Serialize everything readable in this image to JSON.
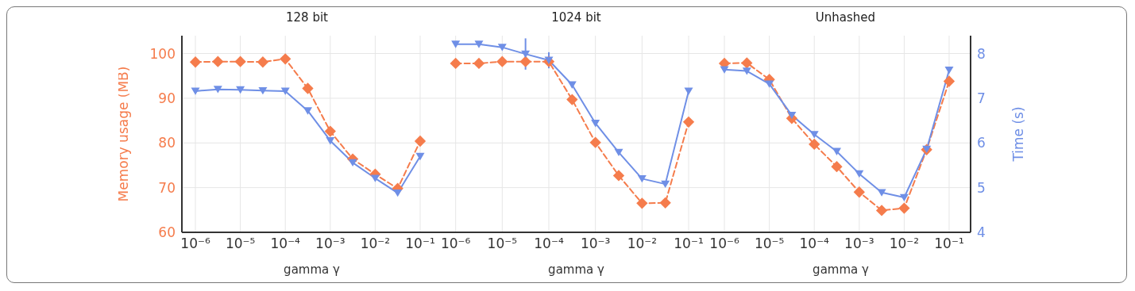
{
  "chart_data": [
    {
      "type": "line",
      "title": "128 bit",
      "xlabel": "gamma γ",
      "ylabel": "Memory usage (MB)",
      "log": "x",
      "grid": true,
      "x": [
        1e-06,
        3.16e-06,
        1e-05,
        3.16e-05,
        0.0001,
        0.000316,
        0.001,
        0.00316,
        0.01,
        0.0316,
        0.1
      ],
      "xlim": [
        5e-07,
        0.3
      ],
      "xticks": [
        {
          "value": 1e-06,
          "label": "10⁻⁶"
        },
        {
          "value": 1e-05,
          "label": "10⁻⁵"
        },
        {
          "value": 0.0001,
          "label": "10⁻⁴"
        },
        {
          "value": 0.001,
          "label": "10⁻³"
        },
        {
          "value": 0.01,
          "label": "10⁻²"
        },
        {
          "value": 0.1,
          "label": "10⁻¹"
        }
      ],
      "ylim": [
        60,
        104
      ],
      "yticks": [
        60,
        70,
        80,
        90,
        100
      ],
      "y2lim": [
        4,
        8.4
      ],
      "series": [
        {
          "color": "#f57c4c",
          "marker": "diamond",
          "line_style": "dashed",
          "values": [
            98.1,
            98.2,
            98.2,
            98.1,
            98.8,
            92.2,
            82.6,
            76.4,
            73.0,
            69.8,
            80.4
          ]
        },
        {
          "color": "#6f8fe6",
          "marker": "triangle",
          "line_style": "solid",
          "axis": "y2",
          "values": [
            7.16,
            7.2,
            7.19,
            7.17,
            7.16,
            6.72,
            6.05,
            5.56,
            5.21,
            4.88,
            5.7
          ]
        }
      ]
    },
    {
      "type": "line",
      "title": "1024 bit",
      "xlabel": "gamma γ",
      "log": "x",
      "grid": true,
      "tick_labels": "x",
      "x": [
        1e-06,
        3.16e-06,
        1e-05,
        3.16e-05,
        0.0001,
        0.000316,
        0.001,
        0.00316,
        0.01,
        0.0316,
        0.1
      ],
      "xlim": [
        5e-07,
        0.3
      ],
      "xticks": [
        {
          "value": 1e-06,
          "label": "10⁻⁶"
        },
        {
          "value": 1e-05,
          "label": "10⁻⁵"
        },
        {
          "value": 0.0001,
          "label": "10⁻⁴"
        },
        {
          "value": 0.001,
          "label": "10⁻³"
        },
        {
          "value": 0.01,
          "label": "10⁻²"
        },
        {
          "value": 0.1,
          "label": "10⁻¹"
        }
      ],
      "ylim": [
        60,
        104
      ],
      "yticks": [
        60,
        70,
        80,
        90,
        100
      ],
      "y2lim": [
        4,
        8.4
      ],
      "series": [
        {
          "color": "#f57c4c",
          "marker": "diamond",
          "line_style": "dashed",
          "values": [
            97.8,
            97.8,
            98.2,
            98.2,
            98.2,
            89.7,
            80.1,
            72.7,
            66.5,
            66.6,
            84.7
          ]
        },
        {
          "color": "#6f8fe6",
          "marker": "triangle",
          "line_style": "solid",
          "axis": "y2",
          "values": [
            8.21,
            8.21,
            8.14,
            7.99,
            7.85,
            7.3,
            6.44,
            5.79,
            5.2,
            5.08,
            7.16
          ],
          "errors": [
            null,
            null,
            null,
            0.35,
            0.18,
            null,
            null,
            null,
            null,
            null,
            null
          ]
        }
      ]
    },
    {
      "type": "line",
      "title": "Unhashed",
      "xlabel": "gamma γ",
      "y2label": "Time (s)",
      "log": "x",
      "grid": true,
      "x": [
        1e-06,
        3.16e-06,
        1e-05,
        3.16e-05,
        0.0001,
        0.000316,
        0.001,
        0.00316,
        0.01,
        0.0316,
        0.1
      ],
      "xlim": [
        5e-07,
        0.3
      ],
      "xticks": [
        {
          "value": 1e-06,
          "label": "10⁻⁶"
        },
        {
          "value": 1e-05,
          "label": "10⁻⁵"
        },
        {
          "value": 0.0001,
          "label": "10⁻⁴"
        },
        {
          "value": 0.001,
          "label": "10⁻³"
        },
        {
          "value": 0.01,
          "label": "10⁻²"
        },
        {
          "value": 0.1,
          "label": "10⁻¹"
        }
      ],
      "ylim": [
        60,
        104
      ],
      "y2lim": [
        4,
        8.4
      ],
      "y2ticks": [
        4,
        5,
        6,
        7,
        8
      ],
      "series": [
        {
          "color": "#f57c4c",
          "marker": "diamond",
          "line_style": "dashed",
          "values": [
            97.8,
            97.9,
            94.2,
            85.5,
            79.7,
            74.7,
            69.0,
            64.9,
            65.4,
            78.5,
            93.8
          ]
        },
        {
          "color": "#6f8fe6",
          "marker": "triangle",
          "line_style": "solid",
          "axis": "y2",
          "values": [
            7.64,
            7.61,
            7.32,
            6.62,
            6.19,
            5.81,
            5.31,
            4.89,
            4.78,
            5.86,
            7.63
          ]
        }
      ]
    }
  ]
}
